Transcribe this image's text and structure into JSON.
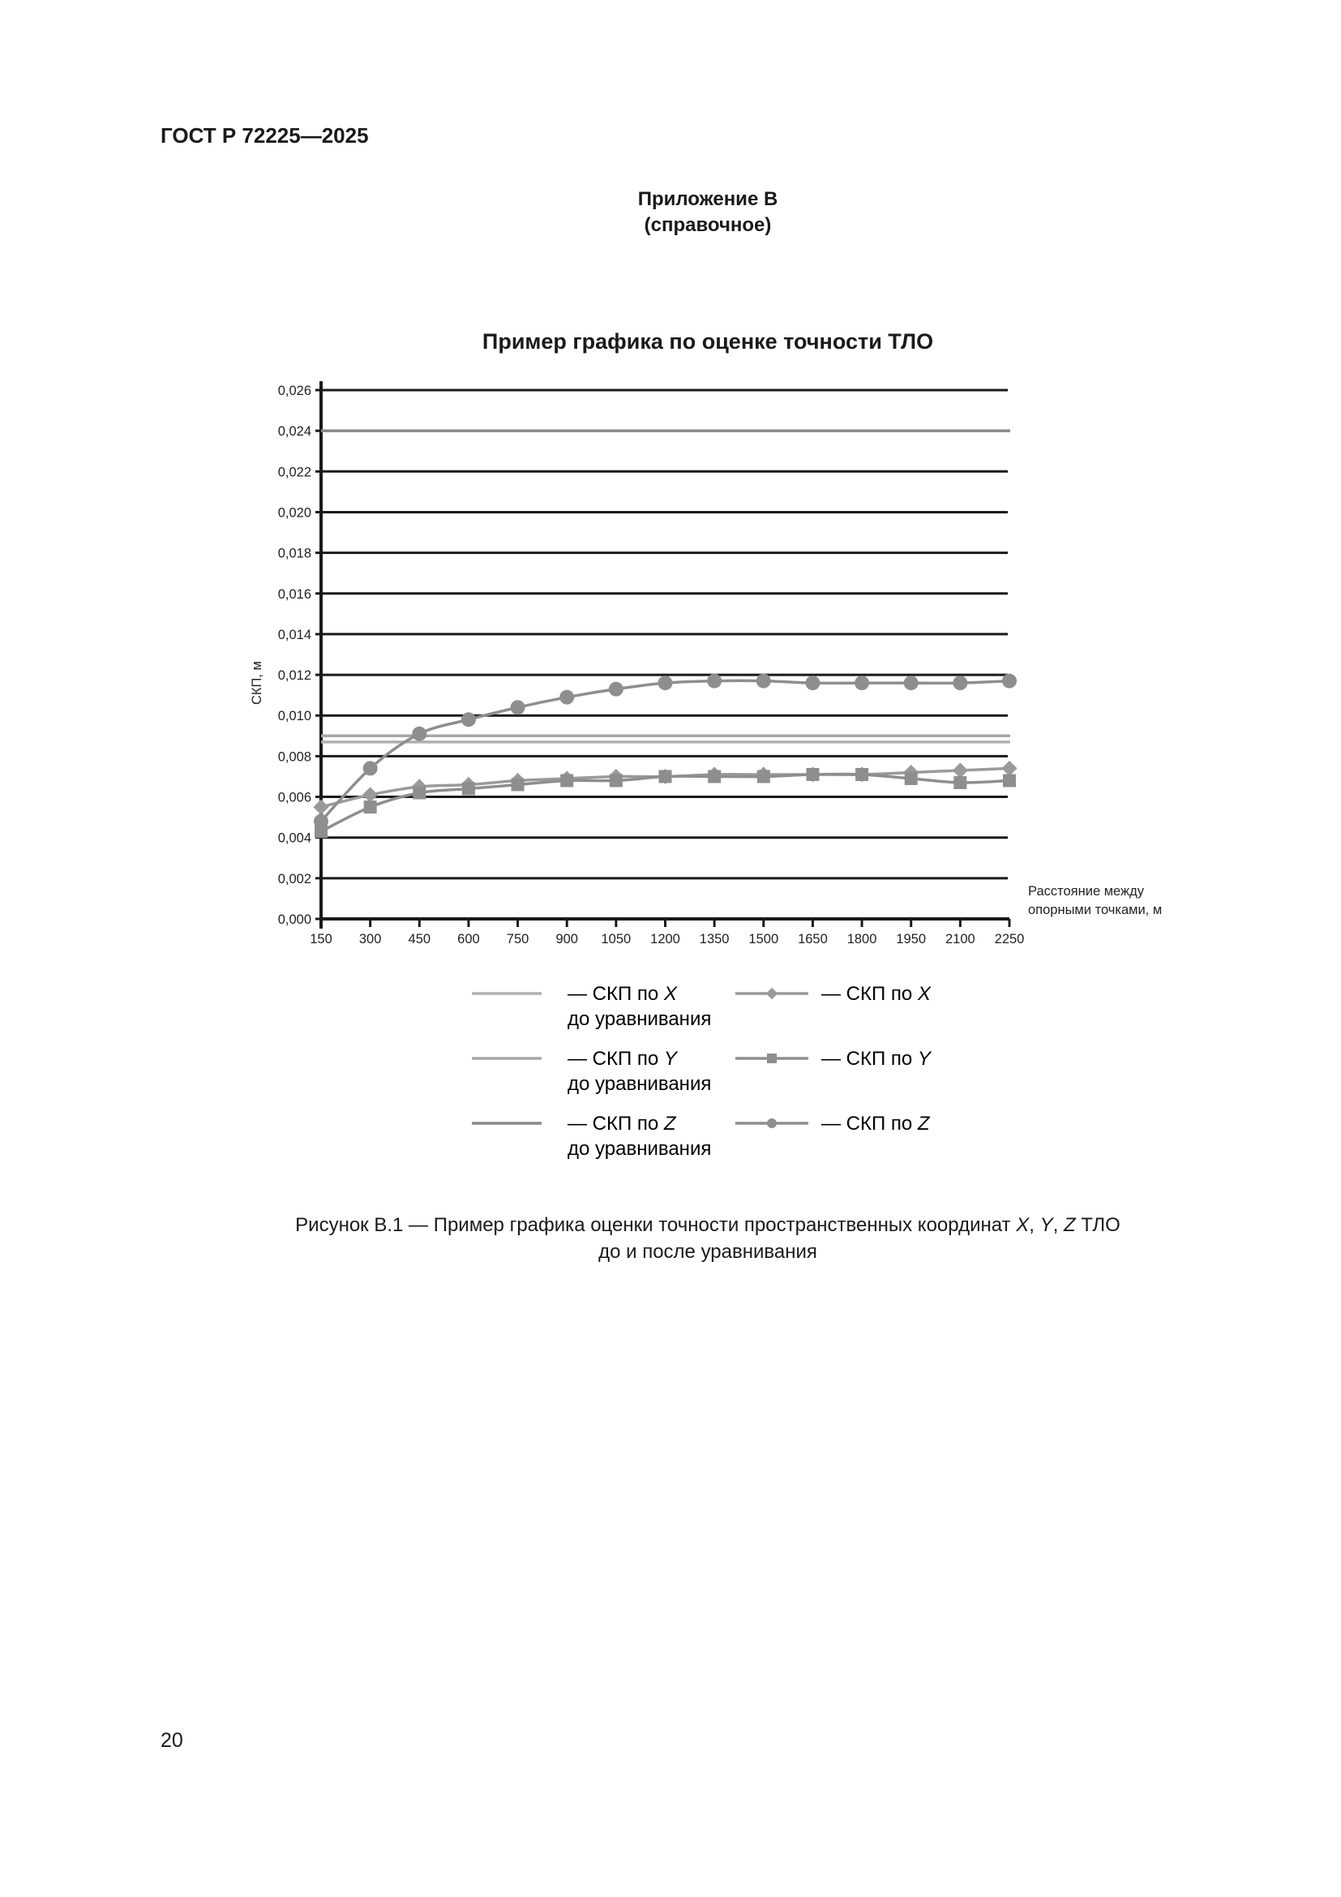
{
  "header": "ГОСТ Р 72225—2025",
  "appendix": {
    "title": "Приложение В",
    "note": "(справочное)"
  },
  "page_number": "20",
  "caption": {
    "line1_pre": "Рисунок В.1 — Пример графика оценки точности пространственных координат ",
    "X": "X",
    "sep": ", ",
    "Y": "Y",
    "Z": "Z",
    "line1_post": " ТЛО",
    "line2": "до  и  после  уравнивания"
  },
  "chart_data": {
    "type": "line",
    "title": "Пример графика по оценке точности ТЛО",
    "ylabel": "СКП, м",
    "xlabel": "Расстояние между опорными точками, м",
    "xlabel_lines": [
      "Расстояние между",
      "опорными точками, м"
    ],
    "x": [
      150,
      300,
      450,
      600,
      750,
      900,
      1050,
      1200,
      1350,
      1500,
      1650,
      1800,
      1950,
      2100,
      2250
    ],
    "ylim": [
      0,
      0.026
    ],
    "yticks": [
      "0,000",
      "0,002",
      "0,004",
      "0,006",
      "0,008",
      "0,010",
      "0,012",
      "0,014",
      "0,016",
      "0,018",
      "0,020",
      "0,022",
      "0,024",
      "0,026"
    ],
    "grid": true,
    "legend_position": "bottom",
    "reference_lines": [
      {
        "name": "— СКП по X до уравнивания",
        "axis": "X",
        "value": 0.0087,
        "color": "#b0b0b0"
      },
      {
        "name": "— СКП по Y до уравнивания",
        "axis": "Y",
        "value": 0.009,
        "color": "#a6a6a6"
      },
      {
        "name": "— СКП по Z до уравнивания",
        "axis": "Z",
        "value": 0.024,
        "color": "#8a8a8a"
      }
    ],
    "series": [
      {
        "name": "— СКП по X",
        "axis": "X",
        "marker": "diamond",
        "color": "#9a9a9a",
        "values": [
          0.0055,
          0.0061,
          0.0065,
          0.0066,
          0.0068,
          0.0069,
          0.007,
          0.007,
          0.0071,
          0.0071,
          0.0071,
          0.0071,
          0.0072,
          0.0073,
          0.0074
        ]
      },
      {
        "name": "— СКП по Y",
        "axis": "Y",
        "marker": "square",
        "color": "#8e8e8e",
        "values": [
          0.0043,
          0.0055,
          0.0062,
          0.0064,
          0.0066,
          0.0068,
          0.0068,
          0.007,
          0.007,
          0.007,
          0.0071,
          0.0071,
          0.0069,
          0.0067,
          0.0068
        ]
      },
      {
        "name": "— СКП по Z",
        "axis": "Z",
        "marker": "circle",
        "color": "#8e8e8e",
        "values": [
          0.0048,
          0.0074,
          0.0091,
          0.0098,
          0.0104,
          0.0109,
          0.0113,
          0.0116,
          0.0117,
          0.0117,
          0.0116,
          0.0116,
          0.0116,
          0.0116,
          0.0117
        ]
      }
    ],
    "legend": {
      "dash": "— СКП по ",
      "suffix": "до уравнивания"
    }
  }
}
